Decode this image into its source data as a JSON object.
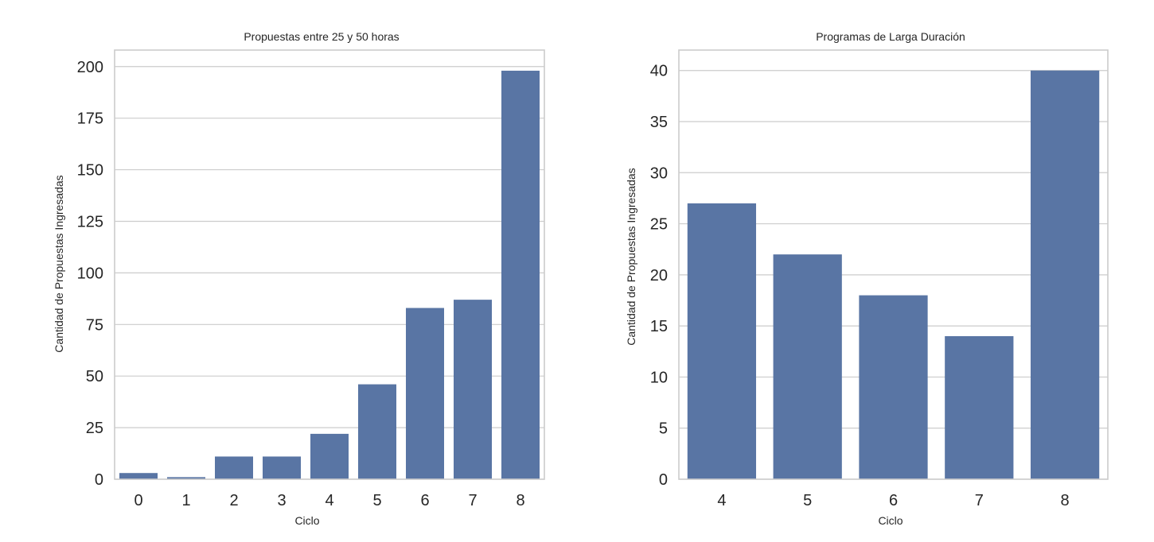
{
  "chart_data": [
    {
      "type": "bar",
      "title": "Propuestas entre 25 y 50 horas",
      "xlabel": "Ciclo",
      "ylabel": "Cantidad de Propuestas Ingresadas",
      "categories": [
        "0",
        "1",
        "2",
        "3",
        "4",
        "5",
        "6",
        "7",
        "8"
      ],
      "values": [
        3,
        1,
        11,
        11,
        22,
        46,
        83,
        87,
        198
      ],
      "ylim": [
        0,
        208
      ],
      "yticks": [
        0,
        25,
        50,
        75,
        100,
        125,
        150,
        175,
        200
      ],
      "grid": "y",
      "color": "#5975a4"
    },
    {
      "type": "bar",
      "title": "Programas de Larga Duración",
      "xlabel": "Ciclo",
      "ylabel": "Cantidad de Propuestas Ingresadas",
      "categories": [
        "4",
        "5",
        "6",
        "7",
        "8"
      ],
      "values": [
        27,
        22,
        18,
        14,
        40
      ],
      "ylim": [
        0,
        42
      ],
      "yticks": [
        0,
        5,
        10,
        15,
        20,
        25,
        30,
        35,
        40
      ],
      "grid": "y",
      "color": "#5975a4"
    }
  ]
}
